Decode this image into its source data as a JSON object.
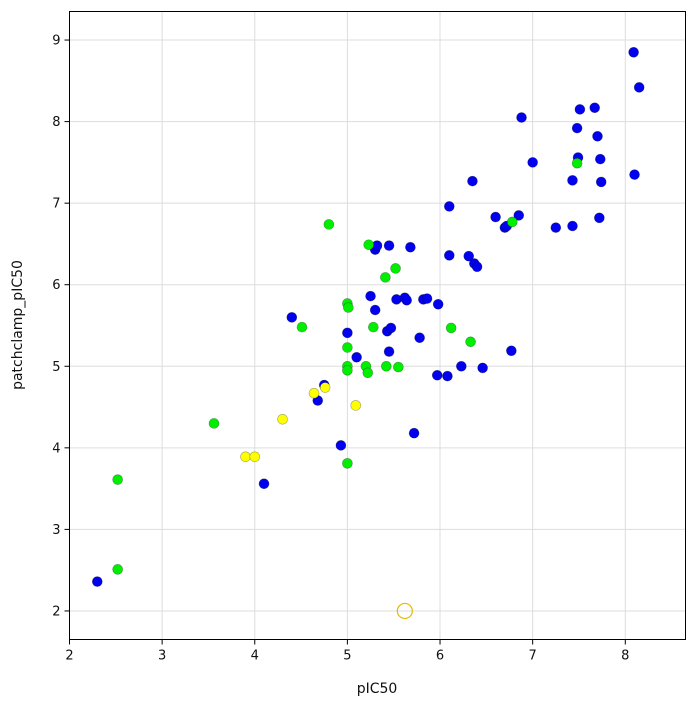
{
  "chart_data": {
    "type": "scatter",
    "title": "",
    "xlabel": "pIC50",
    "ylabel": "patchclamp_pIC50",
    "xlim": [
      2,
      8.65
    ],
    "ylim": [
      1.65,
      9.35
    ],
    "xticks": [
      2,
      3,
      4,
      5,
      6,
      7,
      8
    ],
    "yticks": [
      2,
      3,
      4,
      5,
      6,
      7,
      8,
      9
    ],
    "grid": true,
    "colors": {
      "blue": "#0000ee",
      "green": "#00ee00",
      "yellow": "#ffff00",
      "gold_outline": "#e6b800"
    },
    "series": [
      {
        "color": "#0000ee",
        "points": [
          [
            2.3,
            2.36
          ],
          [
            4.1,
            3.56
          ],
          [
            4.4,
            5.6
          ],
          [
            4.68,
            4.58
          ],
          [
            4.75,
            4.77
          ],
          [
            4.93,
            4.03
          ],
          [
            5.0,
            5.41
          ],
          [
            5.1,
            5.11
          ],
          [
            5.25,
            5.86
          ],
          [
            5.3,
            5.69
          ],
          [
            5.3,
            6.43
          ],
          [
            5.32,
            6.48
          ],
          [
            5.43,
            5.43
          ],
          [
            5.45,
            6.48
          ],
          [
            5.45,
            5.18
          ],
          [
            5.47,
            5.47
          ],
          [
            5.53,
            5.82
          ],
          [
            5.62,
            5.84
          ],
          [
            5.64,
            5.81
          ],
          [
            5.68,
            6.46
          ],
          [
            5.72,
            4.18
          ],
          [
            5.78,
            5.35
          ],
          [
            5.82,
            5.82
          ],
          [
            5.86,
            5.83
          ],
          [
            5.97,
            4.89
          ],
          [
            5.98,
            5.76
          ],
          [
            6.08,
            4.88
          ],
          [
            6.1,
            6.96
          ],
          [
            6.1,
            6.36
          ],
          [
            6.23,
            5.0
          ],
          [
            6.31,
            6.35
          ],
          [
            6.35,
            7.27
          ],
          [
            6.37,
            6.26
          ],
          [
            6.4,
            6.22
          ],
          [
            6.46,
            4.98
          ],
          [
            6.6,
            6.83
          ],
          [
            6.7,
            6.7
          ],
          [
            6.72,
            6.72
          ],
          [
            6.77,
            5.19
          ],
          [
            6.85,
            6.85
          ],
          [
            6.88,
            8.05
          ],
          [
            7.0,
            7.5
          ],
          [
            7.25,
            6.7
          ],
          [
            7.43,
            7.28
          ],
          [
            7.43,
            6.72
          ],
          [
            7.48,
            7.92
          ],
          [
            7.49,
            7.56
          ],
          [
            7.51,
            8.15
          ],
          [
            7.67,
            8.17
          ],
          [
            7.7,
            7.82
          ],
          [
            7.72,
            6.82
          ],
          [
            7.73,
            7.54
          ],
          [
            7.74,
            7.26
          ],
          [
            8.09,
            8.85
          ],
          [
            8.1,
            7.35
          ],
          [
            8.15,
            8.42
          ]
        ]
      },
      {
        "color": "#00ee00",
        "points": [
          [
            2.52,
            3.61
          ],
          [
            2.52,
            2.51
          ],
          [
            3.56,
            4.3
          ],
          [
            4.51,
            5.48
          ],
          [
            4.8,
            6.74
          ],
          [
            5.0,
            5.77
          ],
          [
            5.01,
            5.72
          ],
          [
            5.0,
            5.23
          ],
          [
            5.0,
            5.0
          ],
          [
            5.0,
            4.95
          ],
          [
            5.0,
            3.81
          ],
          [
            5.2,
            5.0
          ],
          [
            5.22,
            4.92
          ],
          [
            5.23,
            6.49
          ],
          [
            5.28,
            5.48
          ],
          [
            5.41,
            6.09
          ],
          [
            5.42,
            5.0
          ],
          [
            5.52,
            6.2
          ],
          [
            5.55,
            4.99
          ],
          [
            6.12,
            5.47
          ],
          [
            6.33,
            5.3
          ],
          [
            6.78,
            6.77
          ],
          [
            7.48,
            7.49
          ]
        ]
      },
      {
        "color": "#ffff00",
        "points": [
          [
            3.9,
            3.89
          ],
          [
            4.0,
            3.89
          ],
          [
            4.3,
            4.35
          ],
          [
            4.64,
            4.67
          ],
          [
            4.76,
            4.74
          ],
          [
            5.09,
            4.52
          ]
        ]
      },
      {
        "color": "hollow-gold",
        "points": [
          [
            5.62,
            2.0
          ]
        ]
      }
    ]
  }
}
